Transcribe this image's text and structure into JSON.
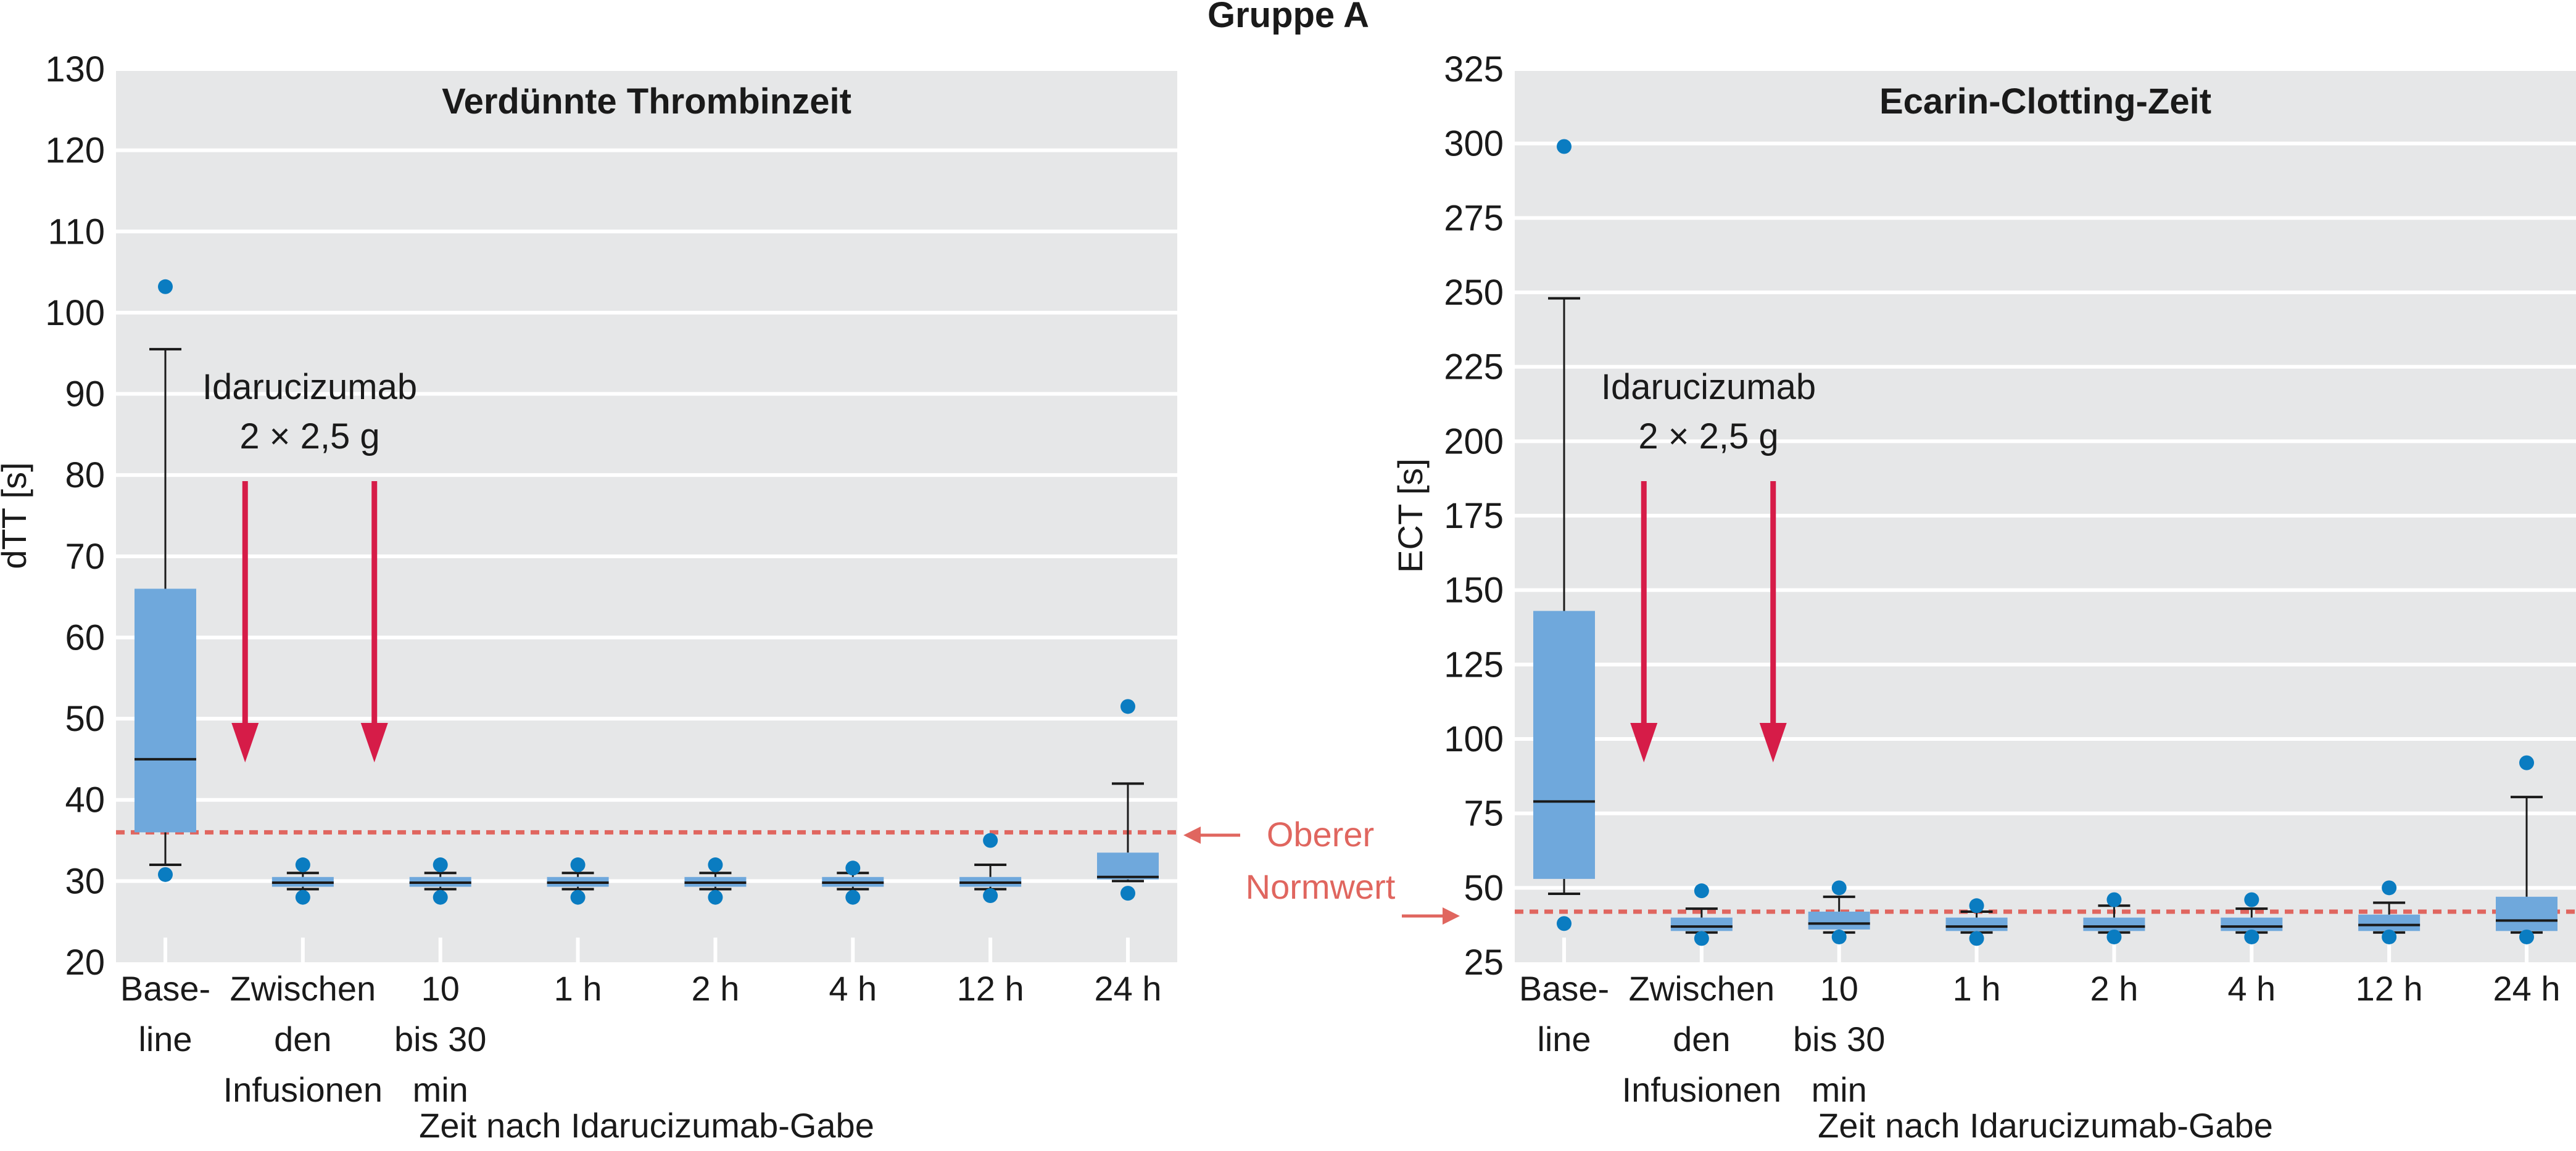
{
  "figure_title": "Gruppe A",
  "colors": {
    "panel_background": "#e6e7e8",
    "gridline": "#ffffff",
    "box_fill": "#6fa8dc",
    "outlier": "#0a7cc1",
    "whisker": "#1a1a1a",
    "arrow": "#d61c48",
    "reference_line": "#e0665f"
  },
  "annotation": {
    "line1": "Idarucizumab",
    "line2": "2 × 2,5 g"
  },
  "reference": {
    "line1": "Oberer",
    "line2": "Normwert"
  },
  "chart_data": [
    {
      "type": "box",
      "title": "Verdünnte Thrombinzeit",
      "ylabel": "dTT [s]",
      "xlabel": "Zeit nach Idarucizumab-Gabe",
      "ylim": [
        20,
        130
      ],
      "yticks": [
        20,
        30,
        40,
        50,
        60,
        70,
        80,
        90,
        100,
        110,
        120,
        130
      ],
      "grid": true,
      "categories": [
        [
          "Base-",
          "line"
        ],
        [
          "Zwischen",
          "den",
          "Infusionen"
        ],
        [
          "10",
          "bis 30",
          "min"
        ],
        [
          "1 h"
        ],
        [
          "2 h"
        ],
        [
          "4 h"
        ],
        [
          "12 h"
        ],
        [
          "24 h"
        ]
      ],
      "reference_value": 36,
      "arrows_after_categories": [
        0.58,
        1.52
      ],
      "boxes": [
        {
          "min": 32,
          "q1": 36,
          "median": 45,
          "q3": 66,
          "max": 95.5,
          "outliers": [
            103.2,
            30.8
          ]
        },
        {
          "min": 29,
          "q1": 29.3,
          "median": 29.8,
          "q3": 30.5,
          "max": 31,
          "outliers": [
            32,
            28
          ]
        },
        {
          "min": 29,
          "q1": 29.3,
          "median": 29.8,
          "q3": 30.5,
          "max": 31,
          "outliers": [
            32,
            28
          ]
        },
        {
          "min": 29,
          "q1": 29.3,
          "median": 29.8,
          "q3": 30.5,
          "max": 31,
          "outliers": [
            32,
            28
          ]
        },
        {
          "min": 29,
          "q1": 29.3,
          "median": 29.8,
          "q3": 30.5,
          "max": 31,
          "outliers": [
            32,
            28
          ]
        },
        {
          "min": 29,
          "q1": 29.3,
          "median": 29.8,
          "q3": 30.5,
          "max": 31,
          "outliers": [
            31.6,
            28
          ]
        },
        {
          "min": 29,
          "q1": 29.3,
          "median": 29.8,
          "q3": 30.5,
          "max": 32,
          "outliers": [
            35,
            28.2
          ]
        },
        {
          "min": 30,
          "q1": 30.2,
          "median": 30.5,
          "q3": 33.5,
          "max": 42,
          "outliers": [
            51.5,
            28.5
          ]
        }
      ]
    },
    {
      "type": "box",
      "title": "Ecarin-Clotting-Zeit",
      "ylabel": "ECT [s]",
      "xlabel": "Zeit nach Idarucizumab-Gabe",
      "ylim": [
        25,
        325
      ],
      "yticks": [
        25,
        50,
        75,
        100,
        125,
        150,
        175,
        200,
        225,
        250,
        275,
        300,
        325
      ],
      "grid": true,
      "categories": [
        [
          "Base-",
          "line"
        ],
        [
          "Zwischen",
          "den",
          "Infusionen"
        ],
        [
          "10",
          "bis 30",
          "min"
        ],
        [
          "1 h"
        ],
        [
          "2 h"
        ],
        [
          "4 h"
        ],
        [
          "12 h"
        ],
        [
          "24 h"
        ]
      ],
      "reference_value": 42,
      "arrows_after_categories": [
        0.58,
        1.52
      ],
      "boxes": [
        {
          "min": 48,
          "q1": 53,
          "median": 79,
          "q3": 143,
          "max": 248,
          "outliers": [
            299,
            38
          ]
        },
        {
          "min": 35,
          "q1": 35.5,
          "median": 37,
          "q3": 40,
          "max": 43,
          "outliers": [
            49,
            33
          ]
        },
        {
          "min": 35,
          "q1": 36,
          "median": 38,
          "q3": 42,
          "max": 47,
          "outliers": [
            50,
            33.5
          ]
        },
        {
          "min": 35,
          "q1": 35.5,
          "median": 37,
          "q3": 40,
          "max": 42,
          "outliers": [
            44,
            33
          ]
        },
        {
          "min": 35,
          "q1": 35.5,
          "median": 37,
          "q3": 40,
          "max": 44,
          "outliers": [
            46,
            33.5
          ]
        },
        {
          "min": 35,
          "q1": 35.5,
          "median": 37,
          "q3": 40,
          "max": 43,
          "outliers": [
            46,
            33.5
          ]
        },
        {
          "min": 35,
          "q1": 35.5,
          "median": 37.5,
          "q3": 41,
          "max": 45,
          "outliers": [
            50,
            33.5
          ]
        },
        {
          "min": 35,
          "q1": 35.5,
          "median": 39,
          "q3": 47,
          "max": 80.5,
          "outliers": [
            92,
            33.5
          ]
        }
      ]
    }
  ]
}
